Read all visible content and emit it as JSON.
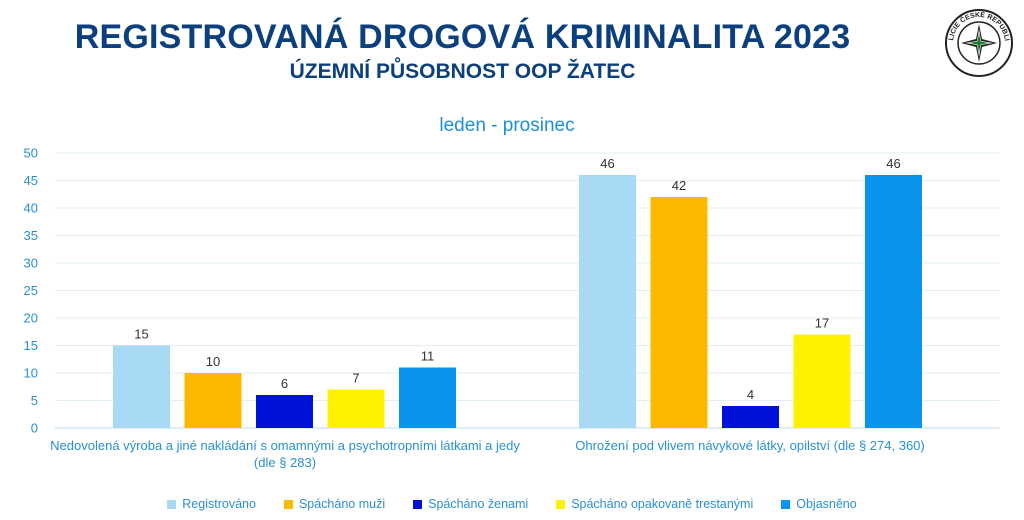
{
  "header": {
    "title": "REGISTROVANÁ DROGOVÁ KRIMINALITA 2023",
    "subtitle": "ÚZEMNÍ PŮSOBNOST OOP ŽATEC",
    "logo_text": "POLICIE ČESKÉ REPUBLIKY"
  },
  "chart_data": {
    "type": "bar",
    "subtitle": "leden - prosinec",
    "categories": [
      "Nedovolená výroba a jiné nakládání s omamnými a psychotropními látkami a jedy (dle § 283)",
      "Ohrožení pod vlivem návykové látky, opilství (dle § 274, 360)"
    ],
    "series": [
      {
        "name": "Registrováno",
        "color": "#a9daf5",
        "values": [
          15,
          46
        ]
      },
      {
        "name": "Spácháno muži",
        "color": "#fbb900",
        "values": [
          10,
          42
        ]
      },
      {
        "name": "Spácháno ženami",
        "color": "#0012d6",
        "values": [
          6,
          4
        ]
      },
      {
        "name": "Spácháno opakovaně trestanými",
        "color": "#fff200",
        "values": [
          7,
          17
        ]
      },
      {
        "name": "Objasněno",
        "color": "#0a94ec",
        "values": [
          11,
          46
        ]
      }
    ],
    "ylim": [
      0,
      50
    ],
    "yticks": [
      "0",
      "5",
      "10",
      "15",
      "20",
      "25",
      "30",
      "35",
      "40",
      "45",
      "50"
    ],
    "grid": true,
    "legend_position": "bottom"
  }
}
